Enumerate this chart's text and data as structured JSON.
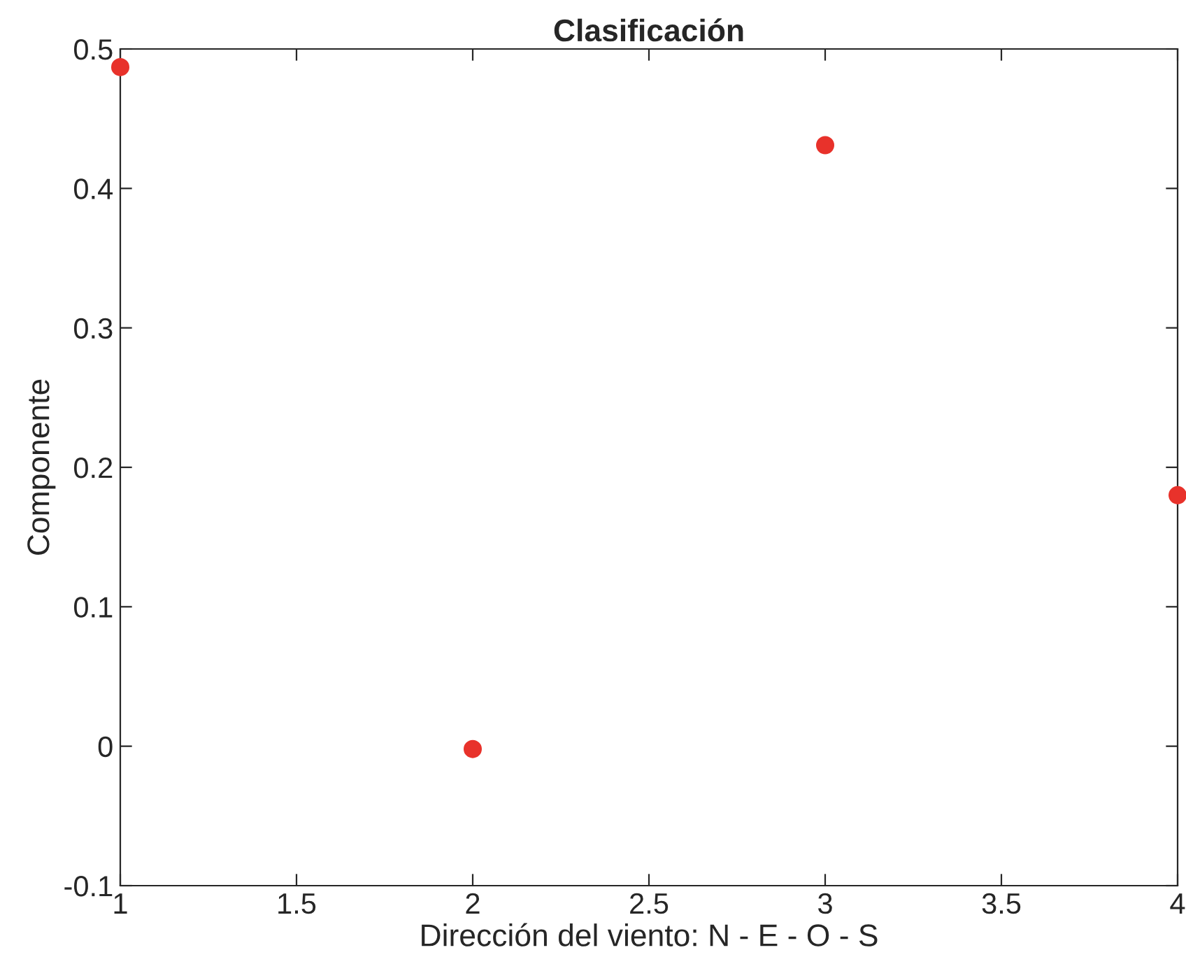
{
  "chart_data": {
    "type": "scatter",
    "title": "Clasificación",
    "xlabel": "Dirección del viento: N - E - O - S",
    "ylabel": "Componente",
    "x": [
      1,
      2,
      3,
      4
    ],
    "series": [
      {
        "color": "#e8322b",
        "values": [
          0.487,
          -0.002,
          0.431,
          0.18
        ]
      }
    ],
    "xlim": [
      1,
      4
    ],
    "xticks": [
      1,
      1.5,
      2,
      2.5,
      3,
      3.5,
      4
    ],
    "ylim": [
      -0.1,
      0.5
    ],
    "yticks": [
      -0.1,
      0,
      0.1,
      0.2,
      0.3,
      0.4,
      0.5
    ],
    "marker": "circle",
    "grid": false,
    "legend": false
  }
}
